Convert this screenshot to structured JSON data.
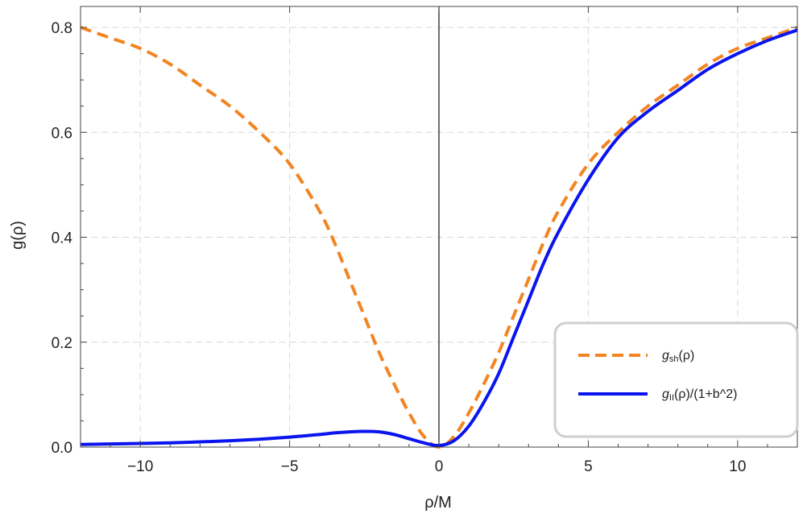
{
  "chart_data": {
    "type": "line",
    "title": "",
    "xlabel": "ρ/M",
    "ylabel": "g(ρ)",
    "xlim": [
      -12,
      12
    ],
    "ylim": [
      0,
      0.84
    ],
    "x_ticks": [
      -10,
      -5,
      0,
      5,
      10
    ],
    "x_tick_labels": [
      "−10",
      "−5",
      "0",
      "5",
      "10"
    ],
    "y_ticks": [
      0.0,
      0.2,
      0.4,
      0.6,
      0.8
    ],
    "y_tick_labels": [
      "0.0",
      "0.2",
      "0.4",
      "0.6",
      "0.8"
    ],
    "grid": true,
    "legend_position": "bottom-right",
    "x": [
      -12,
      -11,
      -10,
      -9,
      -8,
      -7,
      -6,
      -5,
      -4,
      -3.5,
      -3,
      -2.5,
      -2,
      -1.5,
      -1,
      -0.5,
      0,
      0.5,
      1,
      1.5,
      2,
      2.5,
      3,
      3.5,
      4,
      5,
      6,
      7,
      8,
      9,
      10,
      11,
      12
    ],
    "series": [
      {
        "name": "g_sh(ρ)",
        "color": "#f28522",
        "style": "dashed",
        "values": [
          0.8,
          0.78,
          0.76,
          0.73,
          0.69,
          0.65,
          0.6,
          0.54,
          0.45,
          0.39,
          0.32,
          0.25,
          0.18,
          0.12,
          0.065,
          0.02,
          0.0,
          0.02,
          0.065,
          0.12,
          0.18,
          0.25,
          0.32,
          0.39,
          0.45,
          0.54,
          0.6,
          0.65,
          0.69,
          0.73,
          0.76,
          0.78,
          0.8
        ]
      },
      {
        "name": "g_II(ρ)/(1+b^2)",
        "color": "#0a14ee",
        "style": "solid",
        "values": [
          0.005,
          0.006,
          0.007,
          0.008,
          0.01,
          0.012,
          0.015,
          0.019,
          0.024,
          0.027,
          0.029,
          0.03,
          0.029,
          0.024,
          0.016,
          0.008,
          0.003,
          0.012,
          0.04,
          0.085,
          0.14,
          0.21,
          0.28,
          0.35,
          0.41,
          0.51,
          0.59,
          0.64,
          0.68,
          0.72,
          0.75,
          0.775,
          0.795
        ]
      }
    ],
    "legend": [
      {
        "main": "g",
        "sub": "sh",
        "rest": "(ρ)"
      },
      {
        "main": "g",
        "sub": "II",
        "rest": "(ρ)/(1+b^2)"
      }
    ]
  }
}
